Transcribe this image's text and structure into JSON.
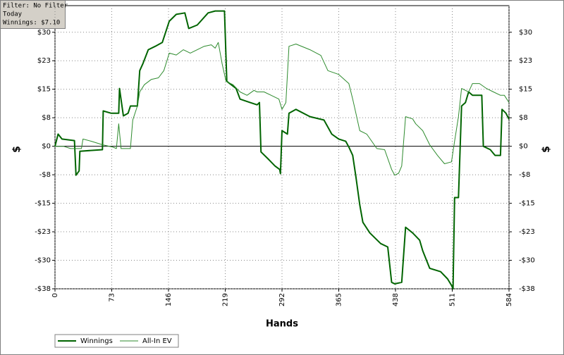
{
  "chart_data": {
    "type": "line",
    "annotations": [
      "Filter: No Filter",
      "Today",
      "Winnings: $7.10"
    ],
    "xlabel": "Hands",
    "ylabel": "$",
    "xlim": [
      0,
      584
    ],
    "xticks": [
      0,
      73,
      146,
      219,
      292,
      365,
      438,
      511,
      584
    ],
    "ylim": [
      -37.5,
      37
    ],
    "yticks": [
      {
        "value": 30,
        "label": "$30"
      },
      {
        "value": 22.5,
        "label": "$23"
      },
      {
        "value": 15,
        "label": "$15"
      },
      {
        "value": 7.5,
        "label": "$8"
      },
      {
        "value": 0,
        "label": "$0"
      },
      {
        "value": -7.5,
        "label": "-$8"
      },
      {
        "value": -15,
        "label": "-$15"
      },
      {
        "value": -22.5,
        "label": "-$23"
      },
      {
        "value": -30,
        "label": "-$30"
      },
      {
        "value": -37.5,
        "label": "-$38"
      }
    ],
    "grid": true,
    "legend": "bottom-left",
    "series": [
      {
        "name": "Winnings",
        "color": "#006400",
        "x": [
          0,
          4,
          9,
          25,
          27,
          31,
          32,
          61,
          62,
          72,
          82,
          83,
          88,
          94,
          97,
          106,
          109,
          113,
          120,
          129,
          138,
          147,
          156,
          167,
          172,
          183,
          197,
          206,
          218,
          221,
          233,
          238,
          251,
          260,
          263,
          265,
          274,
          283,
          289,
          290,
          292,
          299,
          301,
          310,
          328,
          346,
          356,
          365,
          374,
          378,
          383,
          387,
          392,
          396,
          405,
          419,
          428,
          433,
          437,
          446,
          451,
          460,
          469,
          473,
          482,
          496,
          505,
          510,
          512,
          514,
          519,
          523,
          528,
          532,
          537,
          549,
          551,
          560,
          566,
          573,
          575,
          580,
          584
        ],
        "values": [
          0,
          3.2,
          1.9,
          1.5,
          -7.6,
          -6.5,
          -1.3,
          -0.9,
          9.3,
          8.7,
          8.7,
          15.2,
          8.0,
          8.7,
          10.6,
          10.6,
          19.9,
          21.7,
          25.4,
          26.3,
          27.3,
          32.9,
          34.7,
          35.1,
          31.0,
          31.9,
          35.1,
          35.6,
          35.6,
          17.1,
          15.2,
          12.4,
          11.5,
          10.9,
          11.5,
          -1.5,
          -3.3,
          -5.2,
          -6.1,
          -7.2,
          4.1,
          3.2,
          8.7,
          9.7,
          7.8,
          6.9,
          3.2,
          1.9,
          1.3,
          -0.2,
          -2.4,
          -8.0,
          -15.4,
          -20.0,
          -22.8,
          -25.6,
          -26.5,
          -35.8,
          -36.2,
          -35.8,
          -21.3,
          -22.8,
          -24.7,
          -27.5,
          -32.1,
          -33.0,
          -34.9,
          -36.6,
          -37.5,
          -13.5,
          -13.5,
          10.6,
          11.5,
          14.3,
          13.4,
          13.4,
          0,
          -0.9,
          -2.4,
          -2.4,
          9.7,
          8.7,
          7.1
        ]
      },
      {
        "name": "All-In EV",
        "color": "#2e8b2e",
        "x": [
          0,
          11,
          20,
          34,
          36,
          47,
          61,
          74,
          79,
          82,
          85,
          97,
          100,
          106,
          109,
          115,
          124,
          133,
          140,
          147,
          156,
          165,
          174,
          183,
          192,
          201,
          206,
          210,
          215,
          220,
          229,
          238,
          247,
          256,
          260,
          269,
          278,
          288,
          292,
          297,
          301,
          310,
          328,
          342,
          351,
          365,
          378,
          383,
          387,
          392,
          401,
          414,
          424,
          433,
          437,
          442,
          446,
          451,
          460,
          464,
          473,
          482,
          492,
          501,
          510,
          514,
          519,
          523,
          532,
          537,
          546,
          555,
          564,
          573,
          578,
          584
        ],
        "values": [
          0,
          0,
          -0.6,
          -0.6,
          1.9,
          1.3,
          0.4,
          -0.2,
          -0.6,
          5.9,
          -0.6,
          -0.6,
          6.9,
          10.6,
          14.3,
          16.2,
          17.6,
          18.0,
          19.9,
          24.5,
          24.0,
          25.4,
          24.5,
          25.4,
          26.3,
          26.7,
          25.8,
          27.3,
          21.7,
          17.1,
          16.2,
          14.3,
          13.4,
          14.7,
          14.3,
          14.3,
          13.4,
          12.4,
          9.7,
          11.5,
          26.3,
          26.9,
          25.4,
          23.9,
          19.9,
          18.9,
          16.5,
          12.4,
          8.7,
          4.1,
          3.2,
          -0.6,
          -0.9,
          -6.1,
          -7.6,
          -7.1,
          -5.2,
          7.8,
          7.2,
          5.9,
          4.1,
          0.4,
          -2.4,
          -4.6,
          -4.1,
          1.3,
          7.8,
          15.2,
          14.3,
          16.5,
          16.5,
          15.2,
          14.3,
          13.4,
          13.4,
          11.5
        ]
      }
    ]
  }
}
